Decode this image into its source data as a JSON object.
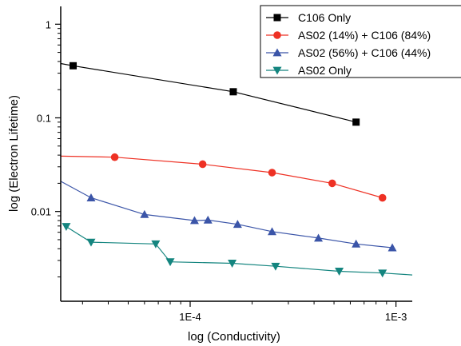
{
  "chart_data": {
    "type": "scatter",
    "xlabel": "log (Conductivity)",
    "ylabel": "log (Electron Lifetime)",
    "x_scale": "log",
    "y_scale": "log",
    "xlim": [
      2.35e-05,
      0.0012
    ],
    "ylim": [
      0.0011,
      1.55
    ],
    "x_ticks": [
      {
        "value": 0.0001,
        "label": "1E-4"
      },
      {
        "value": 0.001,
        "label": "1E-3"
      }
    ],
    "y_ticks": [
      {
        "value": 1,
        "label": "1"
      },
      {
        "value": 0.1,
        "label": "0.1"
      },
      {
        "value": 0.01,
        "label": "0.01"
      }
    ],
    "grid": false,
    "legend_position": "top-right",
    "series": [
      {
        "name": "C106 Only",
        "color": "#000000",
        "marker": "square",
        "x": [
          2.7e-05,
          0.000162,
          0.00064
        ],
        "y": [
          0.36,
          0.19,
          0.09
        ],
        "fit_x": [
          2.35e-05,
          2.7e-05,
          0.000162,
          0.00064
        ],
        "fit_y": [
          0.38,
          0.36,
          0.19,
          0.09
        ]
      },
      {
        "name": "AS02 (14%) + C106 (84%)",
        "color": "#ee3124",
        "marker": "circle",
        "x": [
          4.3e-05,
          0.000115,
          0.00025,
          0.00049,
          0.00086
        ],
        "y": [
          0.038,
          0.032,
          0.026,
          0.02,
          0.014
        ],
        "fit_x": [
          2.35e-05,
          4.3e-05,
          0.000115,
          0.00025,
          0.00049,
          0.00086
        ],
        "fit_y": [
          0.039,
          0.038,
          0.032,
          0.026,
          0.02,
          0.014
        ]
      },
      {
        "name": "AS02 (56%) + C106 (44%)",
        "color": "#3b55a8",
        "marker": "triangle-up",
        "x": [
          3.3e-05,
          6e-05,
          0.000105,
          0.000122,
          0.00017,
          0.00025,
          0.00042,
          0.00064,
          0.00096
        ],
        "y": [
          0.014,
          0.0093,
          0.008,
          0.0081,
          0.0073,
          0.0061,
          0.0052,
          0.0045,
          0.0041
        ],
        "fit_x": [
          2.35e-05,
          3.3e-05,
          6e-05,
          0.000105,
          0.000122,
          0.00017,
          0.00025,
          0.00042,
          0.00064,
          0.00096
        ],
        "fit_y": [
          0.021,
          0.014,
          0.0093,
          0.008,
          0.0081,
          0.0073,
          0.0061,
          0.0052,
          0.0045,
          0.0041
        ]
      },
      {
        "name": "AS02 Only",
        "color": "#14857f",
        "marker": "triangle-down",
        "x": [
          2.5e-05,
          3.3e-05,
          6.8e-05,
          8e-05,
          0.00016,
          0.00026,
          0.00053,
          0.00086
        ],
        "y": [
          0.0069,
          0.0047,
          0.0045,
          0.0029,
          0.0028,
          0.0026,
          0.0023,
          0.0022
        ],
        "fit_x": [
          2.5e-05,
          3.3e-05,
          6.8e-05,
          8e-05,
          0.00016,
          0.00026,
          0.00053,
          0.00086,
          0.0012
        ],
        "fit_y": [
          0.0069,
          0.0047,
          0.0045,
          0.0029,
          0.0028,
          0.0026,
          0.0023,
          0.0022,
          0.0021
        ]
      }
    ]
  }
}
